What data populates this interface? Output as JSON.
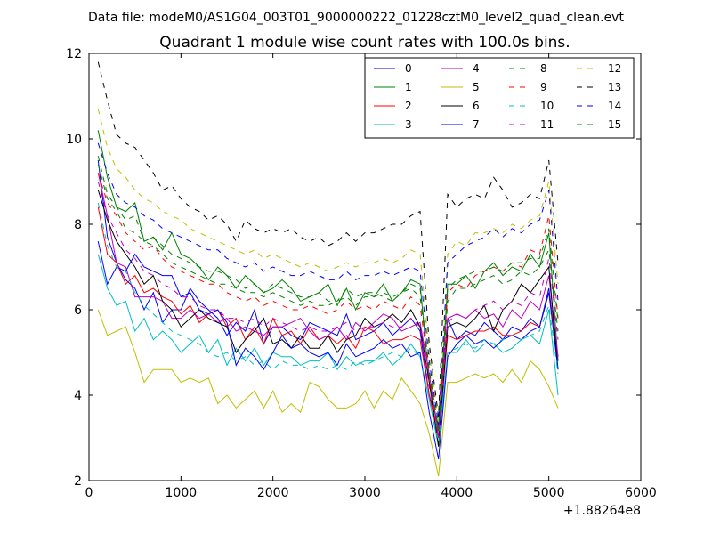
{
  "suptitle": "Data file: modeM0/AS1G04_003T01_9000000222_01228cztM0_level2_quad_clean.evt",
  "title": "Quadrant 1 module wise count rates with 100.0s bins.",
  "x_offset_label": "+1.88264e8",
  "chart_data": {
    "type": "line",
    "title": "Quadrant 1 module wise count rates with 100.0s bins.",
    "xlabel": "",
    "ylabel": "",
    "xlim": [
      0,
      6000
    ],
    "ylim": [
      2,
      12
    ],
    "x_offset": 188264000,
    "x_ticks": [
      0,
      1000,
      2000,
      3000,
      4000,
      5000,
      6000
    ],
    "y_ticks": [
      2,
      4,
      6,
      8,
      10,
      12
    ],
    "grid": false,
    "legend_position": "top-right",
    "legend_columns": 4,
    "x": [
      100,
      200,
      300,
      400,
      500,
      600,
      700,
      800,
      900,
      1000,
      1100,
      1200,
      1300,
      1400,
      1500,
      1600,
      1700,
      1800,
      1900,
      2000,
      2100,
      2200,
      2300,
      2400,
      2500,
      2600,
      2700,
      2800,
      2900,
      3000,
      3100,
      3200,
      3300,
      3400,
      3500,
      3600,
      3700,
      3800,
      3900,
      4000,
      4100,
      4200,
      4300,
      4400,
      4500,
      4600,
      4700,
      4800,
      4900,
      5000,
      5100
    ],
    "series": [
      {
        "name": "0",
        "color": "#0000ff",
        "dash": "solid",
        "values": [
          9.5,
          7.7,
          7.1,
          6.7,
          6.5,
          6.0,
          6.4,
          5.7,
          6.0,
          6.0,
          6.5,
          6.2,
          6.0,
          5.8,
          5.4,
          5.7,
          5.5,
          6.0,
          5.2,
          5.6,
          5.6,
          5.4,
          5.3,
          5.7,
          5.6,
          5.5,
          5.4,
          5.9,
          5.3,
          5.4,
          5.5,
          5.7,
          5.4,
          5.6,
          5.8,
          5.5,
          4.0,
          3.3,
          5.8,
          5.3,
          5.5,
          5.4,
          5.7,
          5.5,
          5.3,
          5.6,
          5.5,
          5.8,
          5.6,
          6.5,
          4.8
        ]
      },
      {
        "name": "1",
        "color": "#008000",
        "dash": "solid",
        "values": [
          10.2,
          9.1,
          8.4,
          8.3,
          8.5,
          7.6,
          7.7,
          7.4,
          7.8,
          7.3,
          7.2,
          7.0,
          6.7,
          7.0,
          6.8,
          6.5,
          6.8,
          6.6,
          6.4,
          6.5,
          6.7,
          6.5,
          6.2,
          6.3,
          6.4,
          6.6,
          6.1,
          6.5,
          6.0,
          6.4,
          6.3,
          6.6,
          6.2,
          6.4,
          6.7,
          6.6,
          4.3,
          3.2,
          6.6,
          6.6,
          6.8,
          6.5,
          6.9,
          7.1,
          6.8,
          7.0,
          6.9,
          7.3,
          7.0,
          7.8,
          4.8
        ]
      },
      {
        "name": "2",
        "color": "#ff0000",
        "dash": "solid",
        "values": [
          8.4,
          7.3,
          7.1,
          6.6,
          6.8,
          6.4,
          6.5,
          6.3,
          6.2,
          5.9,
          6.1,
          5.7,
          5.9,
          6.0,
          5.6,
          5.8,
          5.3,
          5.6,
          5.2,
          5.8,
          5.4,
          5.5,
          5.2,
          5.6,
          5.3,
          5.4,
          5.2,
          5.4,
          5.1,
          5.6,
          5.5,
          5.2,
          5.3,
          5.3,
          5.4,
          5.3,
          4.0,
          3.0,
          5.4,
          5.3,
          5.4,
          5.5,
          5.5,
          5.6,
          5.4,
          5.4,
          5.5,
          5.7,
          5.6,
          6.4,
          4.9
        ]
      },
      {
        "name": "3",
        "color": "#00bfbf",
        "dash": "solid",
        "values": [
          7.3,
          6.5,
          6.1,
          6.2,
          5.5,
          5.8,
          5.3,
          5.5,
          5.3,
          5.0,
          5.2,
          5.4,
          5.0,
          5.3,
          4.7,
          5.1,
          4.8,
          5.1,
          4.7,
          5.0,
          4.9,
          4.9,
          4.7,
          4.8,
          4.8,
          5.0,
          4.6,
          4.9,
          4.7,
          4.8,
          4.8,
          5.0,
          4.7,
          4.9,
          5.2,
          4.9,
          3.9,
          2.8,
          5.0,
          5.0,
          5.3,
          5.0,
          5.2,
          5.2,
          5.0,
          5.1,
          5.3,
          5.4,
          5.2,
          6.0,
          4.0
        ]
      },
      {
        "name": "4",
        "color": "#bf00bf",
        "dash": "solid",
        "values": [
          9.2,
          8.2,
          7.1,
          7.0,
          6.3,
          6.3,
          6.3,
          6.2,
          5.8,
          5.8,
          6.0,
          5.8,
          5.9,
          5.7,
          5.8,
          5.5,
          5.6,
          5.5,
          5.4,
          5.6,
          5.6,
          5.7,
          5.8,
          5.5,
          5.3,
          5.4,
          5.6,
          5.3,
          5.7,
          5.5,
          5.7,
          5.9,
          5.8,
          5.5,
          5.6,
          5.7,
          4.5,
          3.0,
          5.8,
          5.9,
          5.8,
          6.0,
          5.8,
          5.9,
          5.6,
          6.0,
          5.8,
          6.2,
          6.0,
          6.8,
          4.9
        ]
      },
      {
        "name": "5",
        "color": "#bfbf00",
        "dash": "solid",
        "values": [
          6.0,
          5.4,
          5.5,
          5.6,
          5.0,
          4.3,
          4.6,
          4.6,
          4.6,
          4.3,
          4.4,
          4.3,
          4.4,
          3.8,
          4.0,
          3.7,
          3.9,
          4.1,
          3.7,
          4.1,
          3.6,
          3.8,
          3.6,
          4.3,
          4.2,
          3.9,
          3.7,
          3.7,
          3.8,
          4.1,
          3.7,
          4.1,
          3.9,
          4.4,
          4.1,
          3.8,
          3.1,
          2.1,
          4.3,
          4.3,
          4.4,
          4.5,
          4.4,
          4.5,
          4.3,
          4.6,
          4.3,
          4.8,
          4.6,
          4.2,
          3.7
        ]
      },
      {
        "name": "6",
        "color": "#000000",
        "dash": "solid",
        "values": [
          8.8,
          8.1,
          7.6,
          7.3,
          7.0,
          6.6,
          6.8,
          6.2,
          6.0,
          5.6,
          5.8,
          6.0,
          5.8,
          5.7,
          5.6,
          5.0,
          5.3,
          5.5,
          5.8,
          5.2,
          5.3,
          5.1,
          5.4,
          5.1,
          5.1,
          5.4,
          5.0,
          5.3,
          5.4,
          5.8,
          5.6,
          5.7,
          5.9,
          5.7,
          6.0,
          5.6,
          4.3,
          2.8,
          5.6,
          5.7,
          5.6,
          5.8,
          6.1,
          5.5,
          6.0,
          6.2,
          6.6,
          6.4,
          6.7,
          7.0,
          4.6
        ]
      },
      {
        "name": "7",
        "color": "#0000ff",
        "dash": "solid",
        "values": [
          7.6,
          6.6,
          7.0,
          6.9,
          7.3,
          7.0,
          6.9,
          6.8,
          6.8,
          6.3,
          6.4,
          6.0,
          5.9,
          6.0,
          5.7,
          4.7,
          5.1,
          4.9,
          4.6,
          5.0,
          5.4,
          5.1,
          5.2,
          5.0,
          4.9,
          5.0,
          4.7,
          5.2,
          4.9,
          5.0,
          5.1,
          5.3,
          5.1,
          5.2,
          4.9,
          5.0,
          3.6,
          2.5,
          4.9,
          5.2,
          5.4,
          5.2,
          5.3,
          5.1,
          5.3,
          5.4,
          5.3,
          5.5,
          5.6,
          6.4,
          4.6
        ]
      },
      {
        "name": "8",
        "color": "#008000",
        "dash": "dashed",
        "values": [
          9.6,
          8.7,
          8.4,
          8.1,
          8.2,
          7.6,
          7.7,
          7.5,
          7.3,
          7.2,
          7.1,
          7.0,
          6.9,
          6.9,
          6.8,
          6.7,
          6.5,
          6.6,
          6.4,
          6.6,
          6.5,
          6.4,
          6.3,
          6.3,
          6.4,
          6.2,
          6.2,
          6.5,
          6.3,
          6.4,
          6.4,
          6.3,
          6.2,
          6.4,
          6.5,
          6.3,
          4.6,
          3.1,
          6.2,
          6.5,
          6.5,
          6.6,
          6.7,
          6.8,
          6.6,
          6.7,
          6.9,
          6.8,
          7.0,
          7.4,
          5.5
        ]
      },
      {
        "name": "9",
        "color": "#ff0000",
        "dash": "dashed",
        "values": [
          9.2,
          8.5,
          8.2,
          7.8,
          7.6,
          7.4,
          7.5,
          7.2,
          7.0,
          6.9,
          6.8,
          6.7,
          6.6,
          6.6,
          6.4,
          6.3,
          6.2,
          6.3,
          6.1,
          6.2,
          6.1,
          6.0,
          6.0,
          6.1,
          6.0,
          5.9,
          6.0,
          6.2,
          6.0,
          6.1,
          6.0,
          6.2,
          6.1,
          6.0,
          6.3,
          6.1,
          4.5,
          3.0,
          6.4,
          6.6,
          6.5,
          6.8,
          6.9,
          7.0,
          6.9,
          7.1,
          7.0,
          7.4,
          7.3,
          8.2,
          5.8
        ]
      },
      {
        "name": "10",
        "color": "#00bfbf",
        "dash": "dashed",
        "values": [
          8.5,
          7.5,
          7.0,
          6.9,
          6.4,
          6.1,
          5.9,
          5.7,
          5.5,
          5.4,
          5.3,
          5.2,
          5.0,
          4.9,
          5.0,
          4.8,
          4.9,
          4.7,
          4.8,
          4.6,
          4.8,
          4.7,
          4.7,
          4.6,
          4.7,
          4.6,
          4.7,
          4.6,
          4.8,
          4.7,
          4.8,
          4.9,
          5.0,
          4.9,
          5.1,
          4.9,
          3.9,
          2.9,
          5.0,
          5.1,
          5.2,
          5.1,
          5.3,
          5.2,
          5.3,
          5.4,
          5.3,
          5.4,
          5.5,
          6.1,
          4.5
        ]
      },
      {
        "name": "11",
        "color": "#bf00bf",
        "dash": "dashed",
        "values": [
          9.0,
          8.2,
          7.8,
          7.4,
          7.2,
          6.9,
          6.8,
          6.6,
          6.5,
          6.3,
          6.3,
          6.1,
          6.0,
          6.0,
          5.8,
          5.8,
          5.7,
          5.8,
          5.6,
          5.8,
          5.7,
          5.6,
          5.5,
          5.6,
          5.5,
          5.5,
          5.6,
          5.7,
          5.5,
          5.6,
          5.6,
          5.7,
          5.6,
          5.6,
          5.8,
          5.6,
          4.2,
          3.0,
          5.7,
          5.9,
          5.8,
          6.0,
          6.1,
          6.2,
          6.0,
          6.2,
          6.1,
          6.4,
          6.3,
          7.2,
          5.3
        ]
      },
      {
        "name": "12",
        "color": "#bfbf00",
        "dash": "dashed",
        "values": [
          10.7,
          9.8,
          9.3,
          9.1,
          8.8,
          8.6,
          8.5,
          8.3,
          8.2,
          8.1,
          7.9,
          7.8,
          7.7,
          7.6,
          7.5,
          7.4,
          7.3,
          7.4,
          7.2,
          7.3,
          7.2,
          7.1,
          7.0,
          7.1,
          7.0,
          6.9,
          7.0,
          7.1,
          7.0,
          7.1,
          7.1,
          7.2,
          7.1,
          7.2,
          7.4,
          7.3,
          5.0,
          3.4,
          7.3,
          7.6,
          7.5,
          7.8,
          7.8,
          7.9,
          7.8,
          8.0,
          7.9,
          8.1,
          8.2,
          9.0,
          6.6
        ]
      },
      {
        "name": "13",
        "color": "#000000",
        "dash": "dashed",
        "values": [
          11.8,
          10.9,
          10.1,
          9.9,
          9.8,
          9.5,
          9.2,
          8.8,
          8.9,
          8.6,
          8.4,
          8.3,
          8.1,
          8.2,
          8.0,
          7.6,
          8.1,
          7.9,
          7.8,
          7.9,
          7.8,
          7.9,
          7.7,
          7.6,
          7.7,
          7.5,
          7.6,
          7.8,
          7.6,
          7.8,
          7.8,
          7.9,
          8.0,
          8.0,
          8.2,
          8.3,
          5.2,
          3.5,
          8.7,
          8.4,
          8.6,
          8.7,
          8.6,
          9.1,
          8.8,
          8.4,
          8.5,
          8.7,
          8.6,
          9.5,
          7.1
        ]
      },
      {
        "name": "14",
        "color": "#0000ff",
        "dash": "dashed",
        "values": [
          9.9,
          9.2,
          8.7,
          8.5,
          8.4,
          8.2,
          8.1,
          7.9,
          7.8,
          7.7,
          7.6,
          7.5,
          7.4,
          7.4,
          7.2,
          7.1,
          7.0,
          7.1,
          6.9,
          7.0,
          6.9,
          6.8,
          6.8,
          6.9,
          6.8,
          6.7,
          6.7,
          6.9,
          6.7,
          6.8,
          6.8,
          6.9,
          6.8,
          6.9,
          7.0,
          6.9,
          4.8,
          3.3,
          7.1,
          7.3,
          7.5,
          7.6,
          7.7,
          7.9,
          7.7,
          7.9,
          7.8,
          8.0,
          8.1,
          8.8,
          6.2
        ]
      },
      {
        "name": "15",
        "color": "#008000",
        "dash": "dashed",
        "values": [
          9.4,
          8.6,
          8.3,
          7.9,
          7.8,
          7.6,
          7.5,
          7.3,
          7.1,
          7.0,
          6.9,
          6.8,
          6.7,
          6.6,
          6.6,
          6.5,
          6.4,
          6.4,
          6.3,
          6.4,
          6.3,
          6.2,
          6.1,
          6.2,
          6.1,
          6.1,
          6.2,
          6.3,
          6.1,
          6.3,
          6.3,
          6.4,
          6.3,
          6.4,
          6.6,
          6.5,
          4.6,
          3.2,
          6.5,
          6.7,
          6.8,
          6.9,
          6.9,
          7.0,
          6.9,
          7.1,
          7.1,
          7.2,
          7.2,
          7.9,
          5.7
        ]
      }
    ]
  }
}
